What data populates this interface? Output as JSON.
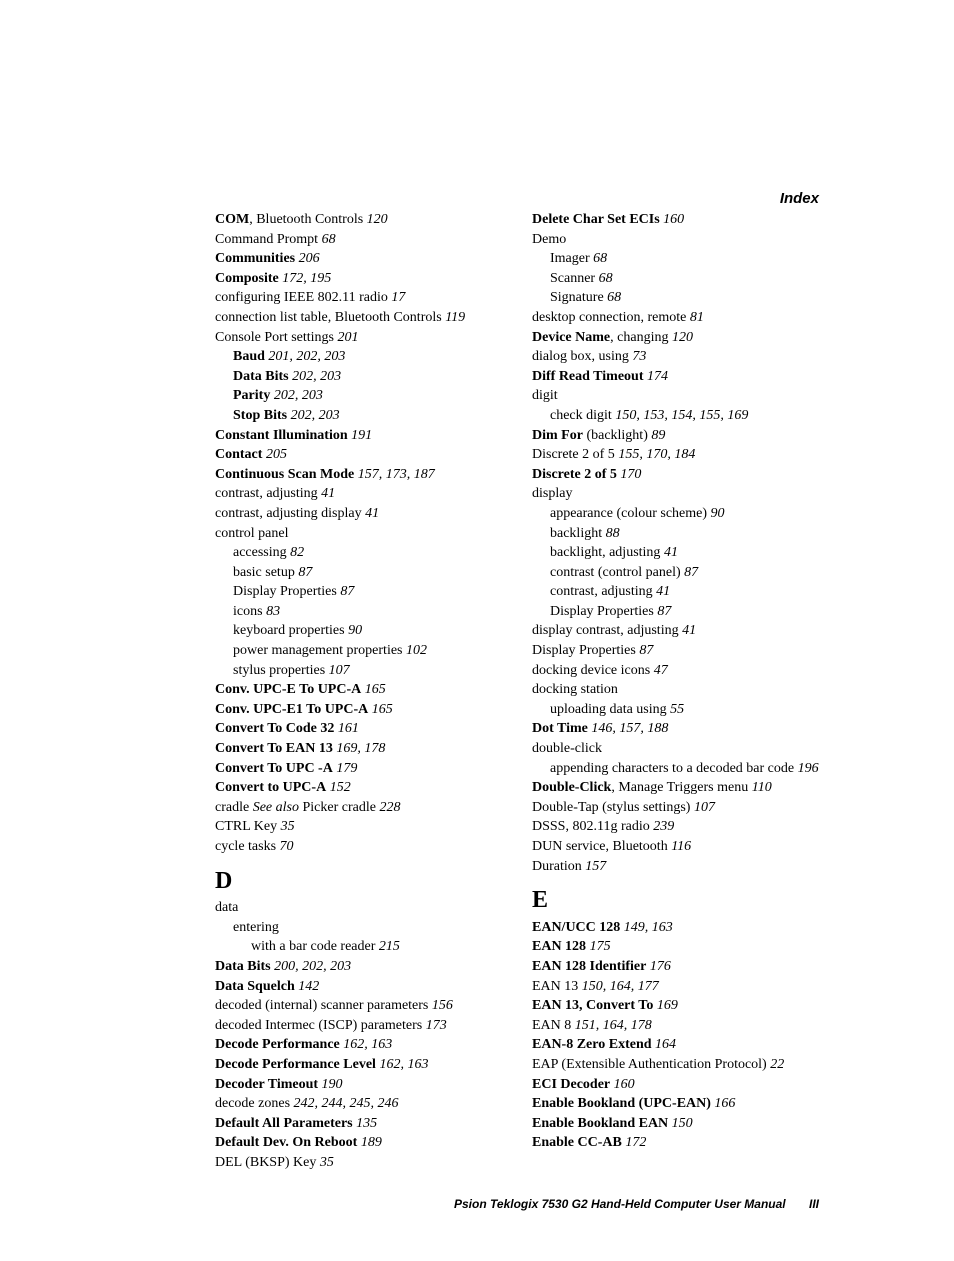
{
  "header": "Index",
  "footer": {
    "text": "Psion Teklogix 7530 G2 Hand-Held Computer User Manual",
    "page": "III"
  },
  "col1": [
    {
      "lvl": 0,
      "parts": [
        {
          "t": "COM",
          "b": true
        },
        {
          "t": ", Bluetooth Controls   "
        },
        {
          "t": "120",
          "i": true
        }
      ]
    },
    {
      "lvl": 0,
      "parts": [
        {
          "t": "Command Prompt   "
        },
        {
          "t": "68",
          "i": true
        }
      ]
    },
    {
      "lvl": 0,
      "parts": [
        {
          "t": "Communities",
          "b": true
        },
        {
          "t": "   "
        },
        {
          "t": "206",
          "i": true
        }
      ]
    },
    {
      "lvl": 0,
      "parts": [
        {
          "t": "Composite",
          "b": true
        },
        {
          "t": "   "
        },
        {
          "t": "172, 195",
          "i": true
        }
      ]
    },
    {
      "lvl": 0,
      "parts": [
        {
          "t": "configuring IEEE 802.11 radio   "
        },
        {
          "t": "17",
          "i": true
        }
      ]
    },
    {
      "lvl": 0,
      "parts": [
        {
          "t": "connection list table, Bluetooth Controls   "
        },
        {
          "t": "119",
          "i": true
        }
      ]
    },
    {
      "lvl": 0,
      "parts": [
        {
          "t": "Console Port settings   "
        },
        {
          "t": "201",
          "i": true
        }
      ]
    },
    {
      "lvl": 1,
      "parts": [
        {
          "t": "Baud",
          "b": true
        },
        {
          "t": "   "
        },
        {
          "t": "201, 202, 203",
          "i": true
        }
      ]
    },
    {
      "lvl": 1,
      "parts": [
        {
          "t": "Data Bits",
          "b": true
        },
        {
          "t": "   "
        },
        {
          "t": "202, 203",
          "i": true
        }
      ]
    },
    {
      "lvl": 1,
      "parts": [
        {
          "t": "Parity",
          "b": true
        },
        {
          "t": "   "
        },
        {
          "t": "202, 203",
          "i": true
        }
      ]
    },
    {
      "lvl": 1,
      "parts": [
        {
          "t": "Stop Bits",
          "b": true
        },
        {
          "t": "   "
        },
        {
          "t": "202, 203",
          "i": true
        }
      ]
    },
    {
      "lvl": 0,
      "parts": [
        {
          "t": "Constant Illumination",
          "b": true
        },
        {
          "t": "   "
        },
        {
          "t": "191",
          "i": true
        }
      ]
    },
    {
      "lvl": 0,
      "parts": [
        {
          "t": "Contact",
          "b": true
        },
        {
          "t": "   "
        },
        {
          "t": "205",
          "i": true
        }
      ]
    },
    {
      "lvl": 0,
      "parts": [
        {
          "t": "Continuous Scan Mode",
          "b": true
        },
        {
          "t": "   "
        },
        {
          "t": "157, 173, 187",
          "i": true
        }
      ]
    },
    {
      "lvl": 0,
      "parts": [
        {
          "t": "contrast, adjusting   "
        },
        {
          "t": "41",
          "i": true
        }
      ]
    },
    {
      "lvl": 0,
      "parts": [
        {
          "t": "contrast, adjusting display   "
        },
        {
          "t": "41",
          "i": true
        }
      ]
    },
    {
      "lvl": 0,
      "parts": [
        {
          "t": "control panel"
        }
      ]
    },
    {
      "lvl": 1,
      "parts": [
        {
          "t": "accessing   "
        },
        {
          "t": "82",
          "i": true
        }
      ]
    },
    {
      "lvl": 1,
      "parts": [
        {
          "t": "basic setup   "
        },
        {
          "t": "87",
          "i": true
        }
      ]
    },
    {
      "lvl": 1,
      "parts": [
        {
          "t": "Display Properties   "
        },
        {
          "t": "87",
          "i": true
        }
      ]
    },
    {
      "lvl": 1,
      "parts": [
        {
          "t": "icons   "
        },
        {
          "t": "83",
          "i": true
        }
      ]
    },
    {
      "lvl": 1,
      "parts": [
        {
          "t": "keyboard properties   "
        },
        {
          "t": "90",
          "i": true
        }
      ]
    },
    {
      "lvl": 1,
      "parts": [
        {
          "t": "power management properties   "
        },
        {
          "t": "102",
          "i": true
        }
      ]
    },
    {
      "lvl": 1,
      "parts": [
        {
          "t": "stylus properties   "
        },
        {
          "t": "107",
          "i": true
        }
      ]
    },
    {
      "lvl": 0,
      "parts": [
        {
          "t": "Conv. UPC-E To UPC-A",
          "b": true
        },
        {
          "t": "   "
        },
        {
          "t": "165",
          "i": true
        }
      ]
    },
    {
      "lvl": 0,
      "parts": [
        {
          "t": "Conv. UPC-E1 To UPC-A",
          "b": true
        },
        {
          "t": "   "
        },
        {
          "t": "165",
          "i": true
        }
      ]
    },
    {
      "lvl": 0,
      "parts": [
        {
          "t": "Convert To Code 32",
          "b": true
        },
        {
          "t": "   "
        },
        {
          "t": "161",
          "i": true
        }
      ]
    },
    {
      "lvl": 0,
      "parts": [
        {
          "t": "Convert To EAN 13",
          "b": true
        },
        {
          "t": "   "
        },
        {
          "t": "169, 178",
          "i": true
        }
      ]
    },
    {
      "lvl": 0,
      "parts": [
        {
          "t": "Convert To UPC -A",
          "b": true
        },
        {
          "t": "   "
        },
        {
          "t": "179",
          "i": true
        }
      ]
    },
    {
      "lvl": 0,
      "parts": [
        {
          "t": "Convert to UPC-A",
          "b": true
        },
        {
          "t": "   "
        },
        {
          "t": "152",
          "i": true
        }
      ]
    },
    {
      "lvl": 0,
      "parts": [
        {
          "t": "cradle "
        },
        {
          "t": "See also",
          "i": true
        },
        {
          "t": " Picker cradle   "
        },
        {
          "t": "228",
          "i": true
        }
      ]
    },
    {
      "lvl": 0,
      "parts": [
        {
          "t": "CTRL Key   "
        },
        {
          "t": "35",
          "i": true
        }
      ]
    },
    {
      "lvl": 0,
      "parts": [
        {
          "t": "cycle tasks   "
        },
        {
          "t": "70",
          "i": true
        }
      ]
    },
    {
      "letter": "D"
    },
    {
      "lvl": 0,
      "parts": [
        {
          "t": "data"
        }
      ]
    },
    {
      "lvl": 1,
      "parts": [
        {
          "t": "entering"
        }
      ]
    },
    {
      "lvl": 2,
      "parts": [
        {
          "t": "with a bar code reader   "
        },
        {
          "t": "215",
          "i": true
        }
      ]
    },
    {
      "lvl": 0,
      "parts": [
        {
          "t": "Data Bits",
          "b": true
        },
        {
          "t": "   "
        },
        {
          "t": "200, 202, 203",
          "i": true
        }
      ]
    },
    {
      "lvl": 0,
      "parts": [
        {
          "t": "Data Squelch",
          "b": true
        },
        {
          "t": "   "
        },
        {
          "t": "142",
          "i": true
        }
      ]
    },
    {
      "lvl": 0,
      "parts": [
        {
          "t": "decoded (internal) scanner parameters   "
        },
        {
          "t": "156",
          "i": true
        }
      ]
    },
    {
      "lvl": 0,
      "parts": [
        {
          "t": "decoded Intermec (ISCP) parameters   "
        },
        {
          "t": "173",
          "i": true
        }
      ]
    },
    {
      "lvl": 0,
      "parts": [
        {
          "t": "Decode Performance",
          "b": true
        },
        {
          "t": "   "
        },
        {
          "t": "162, 163",
          "i": true
        }
      ]
    },
    {
      "lvl": 0,
      "parts": [
        {
          "t": "Decode Performance Level",
          "b": true
        },
        {
          "t": "   "
        },
        {
          "t": "162, 163",
          "i": true
        }
      ]
    },
    {
      "lvl": 0,
      "parts": [
        {
          "t": "Decoder Timeout",
          "b": true
        },
        {
          "t": "   "
        },
        {
          "t": "190",
          "i": true
        }
      ]
    },
    {
      "lvl": 0,
      "parts": [
        {
          "t": "decode zones   "
        },
        {
          "t": "242, 244, 245, 246",
          "i": true
        }
      ]
    },
    {
      "lvl": 0,
      "parts": [
        {
          "t": "Default All Parameters",
          "b": true
        },
        {
          "t": "   "
        },
        {
          "t": "135",
          "i": true
        }
      ]
    },
    {
      "lvl": 0,
      "parts": [
        {
          "t": "Default Dev. On Reboot",
          "b": true
        },
        {
          "t": "   "
        },
        {
          "t": "189",
          "i": true
        }
      ]
    },
    {
      "lvl": 0,
      "parts": [
        {
          "t": "DEL (BKSP) Key   "
        },
        {
          "t": "35",
          "i": true
        }
      ]
    }
  ],
  "col2": [
    {
      "lvl": 0,
      "parts": [
        {
          "t": "Delete Char Set ECIs",
          "b": true
        },
        {
          "t": "   "
        },
        {
          "t": "160",
          "i": true
        }
      ]
    },
    {
      "lvl": 0,
      "parts": [
        {
          "t": "Demo"
        }
      ]
    },
    {
      "lvl": 1,
      "parts": [
        {
          "t": "Imager   "
        },
        {
          "t": "68",
          "i": true
        }
      ]
    },
    {
      "lvl": 1,
      "parts": [
        {
          "t": "Scanner   "
        },
        {
          "t": "68",
          "i": true
        }
      ]
    },
    {
      "lvl": 1,
      "parts": [
        {
          "t": "Signature   "
        },
        {
          "t": "68",
          "i": true
        }
      ]
    },
    {
      "lvl": 0,
      "parts": [
        {
          "t": "desktop connection, remote   "
        },
        {
          "t": "81",
          "i": true
        }
      ]
    },
    {
      "lvl": 0,
      "parts": [
        {
          "t": "Device Name",
          "b": true
        },
        {
          "t": ", changing   "
        },
        {
          "t": "120",
          "i": true
        }
      ]
    },
    {
      "lvl": 0,
      "parts": [
        {
          "t": "dialog box, using   "
        },
        {
          "t": "73",
          "i": true
        }
      ]
    },
    {
      "lvl": 0,
      "parts": [
        {
          "t": "Diff Read Timeout",
          "b": true
        },
        {
          "t": "   "
        },
        {
          "t": "174",
          "i": true
        }
      ]
    },
    {
      "lvl": 0,
      "parts": [
        {
          "t": "digit"
        }
      ]
    },
    {
      "lvl": 1,
      "parts": [
        {
          "t": "check digit   "
        },
        {
          "t": "150, 153, 154, 155, 169",
          "i": true
        }
      ]
    },
    {
      "lvl": 0,
      "parts": [
        {
          "t": "Dim For",
          "b": true
        },
        {
          "t": " (backlight)   "
        },
        {
          "t": "89",
          "i": true
        }
      ]
    },
    {
      "lvl": 0,
      "parts": [
        {
          "t": "Discrete 2 of 5   "
        },
        {
          "t": "155, 170, 184",
          "i": true
        }
      ]
    },
    {
      "lvl": 0,
      "parts": [
        {
          "t": "Discrete 2 of 5",
          "b": true
        },
        {
          "t": "   "
        },
        {
          "t": "170",
          "i": true
        }
      ]
    },
    {
      "lvl": 0,
      "parts": [
        {
          "t": "display"
        }
      ]
    },
    {
      "lvl": 1,
      "parts": [
        {
          "t": "appearance (colour scheme)   "
        },
        {
          "t": "90",
          "i": true
        }
      ]
    },
    {
      "lvl": 1,
      "parts": [
        {
          "t": "backlight   "
        },
        {
          "t": "88",
          "i": true
        }
      ]
    },
    {
      "lvl": 1,
      "parts": [
        {
          "t": "backlight, adjusting   "
        },
        {
          "t": "41",
          "i": true
        }
      ]
    },
    {
      "lvl": 1,
      "parts": [
        {
          "t": "contrast (control panel)   "
        },
        {
          "t": "87",
          "i": true
        }
      ]
    },
    {
      "lvl": 1,
      "parts": [
        {
          "t": "contrast, adjusting   "
        },
        {
          "t": "41",
          "i": true
        }
      ]
    },
    {
      "lvl": 1,
      "parts": [
        {
          "t": "Display Properties   "
        },
        {
          "t": "87",
          "i": true
        }
      ]
    },
    {
      "lvl": 0,
      "parts": [
        {
          "t": "display contrast, adjusting   "
        },
        {
          "t": "41",
          "i": true
        }
      ]
    },
    {
      "lvl": 0,
      "parts": [
        {
          "t": "Display Properties   "
        },
        {
          "t": "87",
          "i": true
        }
      ]
    },
    {
      "lvl": 0,
      "parts": [
        {
          "t": "docking device icons   "
        },
        {
          "t": "47",
          "i": true
        }
      ]
    },
    {
      "lvl": 0,
      "parts": [
        {
          "t": "docking station"
        }
      ]
    },
    {
      "lvl": 1,
      "parts": [
        {
          "t": "uploading data using   "
        },
        {
          "t": "55",
          "i": true
        }
      ]
    },
    {
      "lvl": 0,
      "parts": [
        {
          "t": "Dot Time",
          "b": true
        },
        {
          "t": "   "
        },
        {
          "t": "146, 157, 188",
          "i": true
        }
      ]
    },
    {
      "lvl": 0,
      "parts": [
        {
          "t": "double-click"
        }
      ]
    },
    {
      "lvl": 1,
      "parts": [
        {
          "t": "appending characters to a decoded bar code   "
        },
        {
          "t": "196",
          "i": true
        }
      ]
    },
    {
      "lvl": 0,
      "parts": [
        {
          "t": "Double-Click",
          "b": true
        },
        {
          "t": ", Manage Triggers menu   "
        },
        {
          "t": "110",
          "i": true
        }
      ]
    },
    {
      "lvl": 0,
      "parts": [
        {
          "t": "Double-Tap (stylus settings)   "
        },
        {
          "t": "107",
          "i": true
        }
      ]
    },
    {
      "lvl": 0,
      "parts": [
        {
          "t": "DSSS, 802.11g radio   "
        },
        {
          "t": "239",
          "i": true
        }
      ]
    },
    {
      "lvl": 0,
      "parts": [
        {
          "t": "DUN service, Bluetooth   "
        },
        {
          "t": "116",
          "i": true
        }
      ]
    },
    {
      "lvl": 0,
      "parts": [
        {
          "t": "Duration   "
        },
        {
          "t": "157",
          "i": true
        }
      ]
    },
    {
      "letter": "E"
    },
    {
      "lvl": 0,
      "parts": [
        {
          "t": "EAN/UCC 128",
          "b": true
        },
        {
          "t": "   "
        },
        {
          "t": "149, 163",
          "i": true
        }
      ]
    },
    {
      "lvl": 0,
      "parts": [
        {
          "t": "EAN 128",
          "b": true
        },
        {
          "t": "   "
        },
        {
          "t": "175",
          "i": true
        }
      ]
    },
    {
      "lvl": 0,
      "parts": [
        {
          "t": "EAN 128 Identifier",
          "b": true
        },
        {
          "t": "   "
        },
        {
          "t": "176",
          "i": true
        }
      ]
    },
    {
      "lvl": 0,
      "parts": [
        {
          "t": "EAN 13   "
        },
        {
          "t": "150, 164, 177",
          "i": true
        }
      ]
    },
    {
      "lvl": 0,
      "parts": [
        {
          "t": "EAN 13, Convert To",
          "b": true
        },
        {
          "t": "   "
        },
        {
          "t": "169",
          "i": true
        }
      ]
    },
    {
      "lvl": 0,
      "parts": [
        {
          "t": "EAN 8   "
        },
        {
          "t": "151, 164, 178",
          "i": true
        }
      ]
    },
    {
      "lvl": 0,
      "parts": [
        {
          "t": "EAN-8 Zero Extend",
          "b": true
        },
        {
          "t": "   "
        },
        {
          "t": "164",
          "i": true
        }
      ]
    },
    {
      "lvl": 0,
      "parts": [
        {
          "t": "EAP (Extensible Authentication Protocol)   "
        },
        {
          "t": "22",
          "i": true
        }
      ]
    },
    {
      "lvl": 0,
      "parts": [
        {
          "t": "ECI Decoder",
          "b": true
        },
        {
          "t": "   "
        },
        {
          "t": "160",
          "i": true
        }
      ]
    },
    {
      "lvl": 0,
      "parts": [
        {
          "t": "Enable Bookland (UPC-EAN)",
          "b": true
        },
        {
          "t": "   "
        },
        {
          "t": "166",
          "i": true
        }
      ]
    },
    {
      "lvl": 0,
      "parts": [
        {
          "t": "Enable Bookland EAN",
          "b": true
        },
        {
          "t": "   "
        },
        {
          "t": "150",
          "i": true
        }
      ]
    },
    {
      "lvl": 0,
      "parts": [
        {
          "t": "Enable CC-AB",
          "b": true
        },
        {
          "t": "   "
        },
        {
          "t": "172",
          "i": true
        }
      ]
    }
  ]
}
